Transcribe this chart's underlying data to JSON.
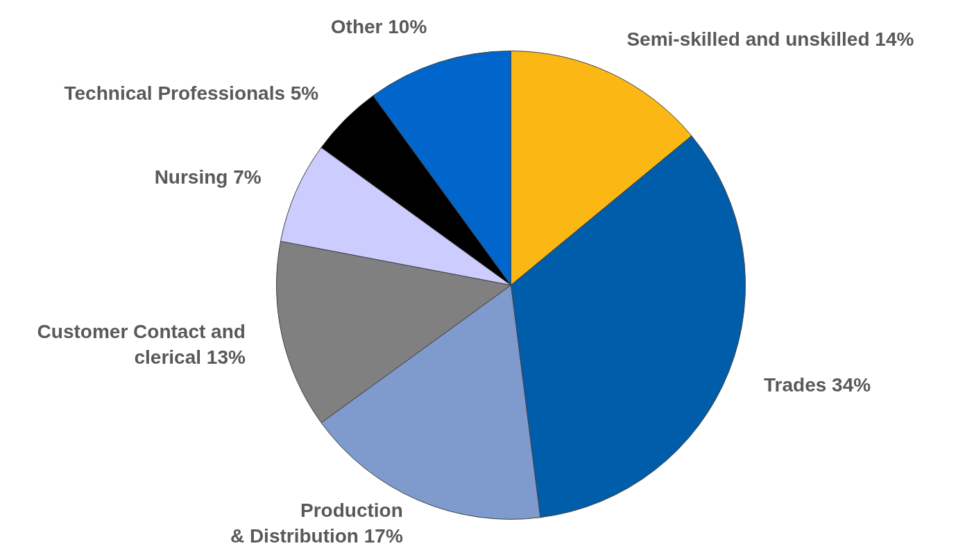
{
  "chart_data": {
    "type": "pie",
    "categories": [
      "Semi-skilled and unskilled",
      "Trades",
      "Production\n& Distribution",
      "Customer Contact and\nclerical",
      "Nursing",
      "Technical Professionals",
      "Other"
    ],
    "values": [
      14,
      34,
      17,
      13,
      7,
      5,
      10
    ],
    "value_labels": [
      "14%",
      "34%",
      "17%",
      "13%",
      "7%",
      "5%",
      "10%"
    ],
    "colors": [
      "#fbb714",
      "#005daa",
      "#7f9acd",
      "#808080",
      "#ccccff",
      "#000000",
      "#0066cc"
    ]
  }
}
